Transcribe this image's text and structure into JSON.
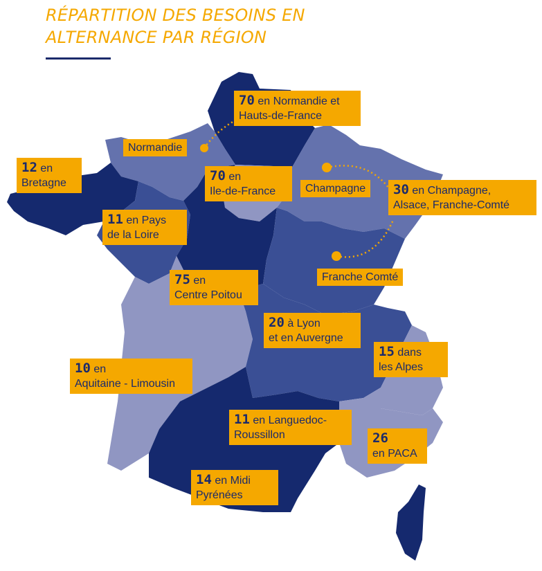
{
  "title": {
    "line1": "RÉPARTITION DES BESOINS EN",
    "line2": "ALTERNANCE PAR RÉGION"
  },
  "colors": {
    "accent": "#f5a800",
    "navy_dark": "#15296e",
    "navy_mid": "#3a4f95",
    "navy_light": "#6472ad",
    "lavender": "#9096c2"
  },
  "labels": {
    "normandie_hdf": {
      "num": "70",
      "l1_rest": " en Normandie et",
      "l2": "Hauts-de-France"
    },
    "bretagne": {
      "num": "12",
      "l1_rest": " en",
      "l2": "Bretagne"
    },
    "idf": {
      "num": "70",
      "l1_rest": " en",
      "l2": "Ile-de-France"
    },
    "grand_est": {
      "num": "30",
      "l1_rest": " en Champagne,",
      "l2": "Alsace, Franche-Comté"
    },
    "pays_loire": {
      "num": "11",
      "l1_rest": " en Pays",
      "l2": "de la Loire"
    },
    "centre_poitou": {
      "num": "75",
      "l1_rest": " en",
      "l2": "Centre Poitou"
    },
    "lyon_auvergne": {
      "num": "20",
      "l1_rest": " à Lyon",
      "l2": "et en Auvergne"
    },
    "alpes": {
      "num": "15",
      "l1_rest": " dans",
      "l2": "les Alpes"
    },
    "aquitaine": {
      "num": "10",
      "l1_rest": " en",
      "l2": "Aquitaine - Limousin"
    },
    "languedoc": {
      "num": "11",
      "l1_rest": " en Languedoc-",
      "l2": "Roussillon"
    },
    "paca": {
      "num": "26",
      "l1_rest": "",
      "l2": "en PACA"
    },
    "midi_pyrenees": {
      "num": "14",
      "l1_rest": " en Midi",
      "l2": "Pyrénées"
    }
  },
  "place_names": {
    "normandie": "Normandie",
    "champagne": "Champagne",
    "franche_comte": "Franche Comté"
  }
}
